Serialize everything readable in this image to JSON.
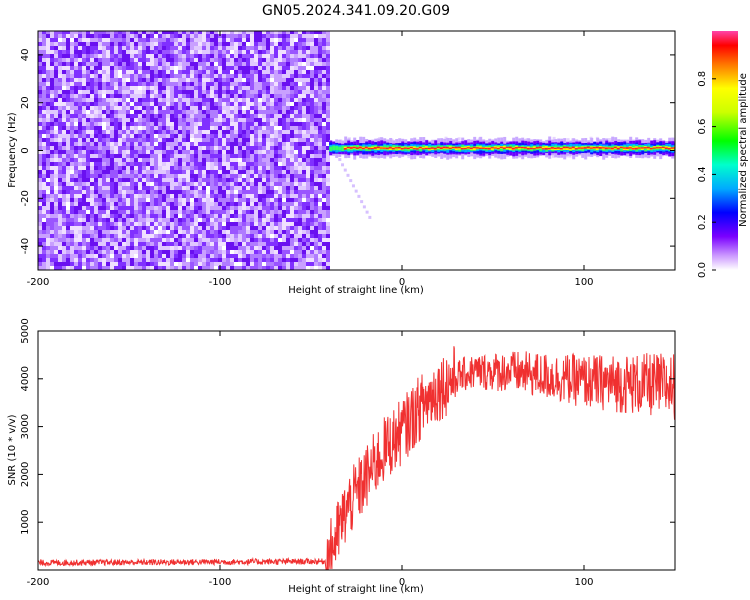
{
  "title": "GN05.2024.341.09.20.G09",
  "charts": [
    {
      "type": "heatmap",
      "xlabel": "Height of straight line (km)",
      "ylabel": "Frequency (Hz)",
      "xlim": [
        -200,
        150
      ],
      "ylim": [
        -50,
        50
      ],
      "xticks": [
        "-200",
        "-100",
        "0",
        "100"
      ],
      "xtick_values": [
        -200,
        -100,
        0,
        100
      ],
      "yticks": [
        "-40",
        "-20",
        "0",
        "20",
        "40"
      ],
      "ytick_values": [
        -40,
        -20,
        0,
        20,
        40
      ],
      "colorbar": {
        "label": "Normalized spectral amplitude",
        "range": [
          0,
          1
        ],
        "ticks": [
          "0.0",
          "0.2",
          "0.4",
          "0.6",
          "0.8"
        ],
        "tick_values": [
          0,
          0.2,
          0.4,
          0.6,
          0.8
        ]
      },
      "noise_region_x": [
        -200,
        -40
      ],
      "signal_band": {
        "x": [
          -40,
          150
        ],
        "center_freq_hz": 1,
        "peak_x_start": -32
      },
      "grid": false
    },
    {
      "type": "line",
      "xlabel": "Height of straight line (km)",
      "ylabel": "SNR (10 * v/v)",
      "xlim": [
        -200,
        150
      ],
      "ylim": [
        0,
        5000
      ],
      "xticks": [
        "-200",
        "-100",
        "0",
        "100"
      ],
      "xtick_values": [
        -200,
        -100,
        0,
        100
      ],
      "yticks": [
        "1000",
        "2000",
        "3000",
        "4000",
        "5000"
      ],
      "ytick_values": [
        1000,
        2000,
        3000,
        4000,
        5000
      ],
      "series_color": "#f03030",
      "profile": [
        [
          -200,
          150
        ],
        [
          -42,
          180
        ],
        [
          -40,
          300
        ],
        [
          -35,
          800
        ],
        [
          -30,
          1300
        ],
        [
          -20,
          1900
        ],
        [
          -10,
          2500
        ],
        [
          0,
          2900
        ],
        [
          10,
          3400
        ],
        [
          20,
          3800
        ],
        [
          30,
          4050
        ],
        [
          40,
          4150
        ],
        [
          60,
          4150
        ],
        [
          80,
          4050
        ],
        [
          100,
          3950
        ],
        [
          120,
          3900
        ],
        [
          150,
          3850
        ]
      ],
      "grid": false
    }
  ]
}
